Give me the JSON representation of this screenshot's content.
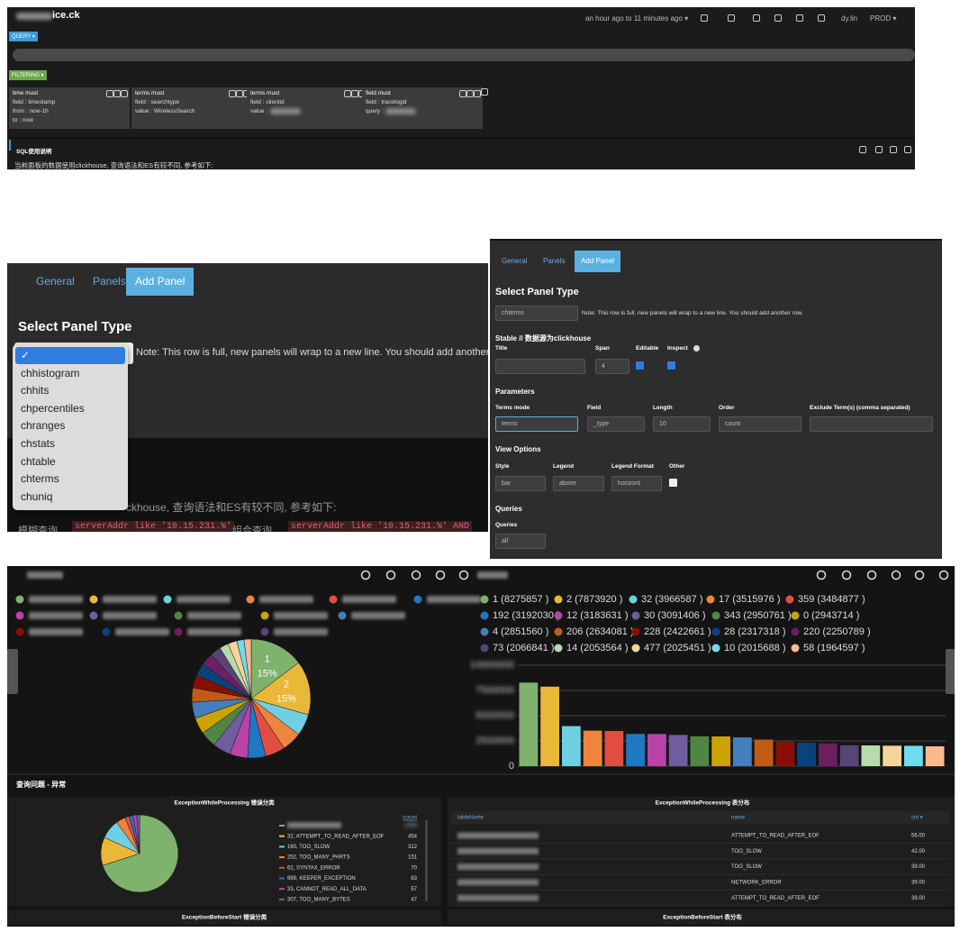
{
  "header": {
    "site": "ice.ck",
    "time_range": "an hour ago to 11 minutes ago ▾",
    "user": "dy.lin",
    "env": "PROD ▾",
    "query_button": "QUERY ▾",
    "filtering_button": "FILTERING ▾",
    "filters": [
      {
        "title": "time must",
        "lines": [
          "field : timestamp",
          "from : now-1h",
          "to : now"
        ]
      },
      {
        "title": "terms must",
        "lines": [
          "field : searchtype",
          "value : WirelessSearch"
        ]
      },
      {
        "title": "terms must",
        "lines": [
          "field : clientid",
          "value :"
        ]
      },
      {
        "title": "field must",
        "lines": [
          "field : tracelogid",
          "query :"
        ]
      }
    ],
    "sql_title": "SQL使用说明",
    "sql_note": "当前面板的数据使用clickhouse, 查询语法和ES有较不同, 参考如下:"
  },
  "add_panel_dialog": {
    "tabs": [
      "General",
      "Panels",
      "Add Panel"
    ],
    "heading": "Select Panel Type",
    "options": [
      "✓",
      "chhistogram",
      "chhits",
      "chpercentiles",
      "chranges",
      "chstats",
      "chtable",
      "chterms",
      "chuniq"
    ],
    "note": "Note: This row is full, new panels will wrap to a new line. You should add another row.",
    "background_text": "ckhouse, 查询语法和ES有较不同, 参考如下:",
    "example": [
      "模糊查询",
      "serverAddr like '10.15.231.%'",
      "组合查询",
      "serverAddr like '10.15.231.%' AND"
    ]
  },
  "panel_settings": {
    "tabs": [
      "General",
      "Panels",
      "Add Panel"
    ],
    "heading": "Select Panel Type",
    "panel_type": "chterms",
    "note": "Note: This row is full, new panels will wrap to a new line. You should add another row.",
    "subtitle": "Stable // 数据源为clickhouse",
    "general_labels": [
      "Title",
      "Span",
      "Editable",
      "Inspect"
    ],
    "span": "4",
    "parameters_heading": "Parameters",
    "parameter_labels": [
      "Terms mode",
      "Field",
      "Length",
      "Order",
      "Exclude Term(s) (comma separated)"
    ],
    "parameter_values": [
      "terms",
      "_type",
      "10",
      "count"
    ],
    "view_heading": "View Options",
    "view_labels": [
      "Style",
      "Legend",
      "Legend Format",
      "Other"
    ],
    "view_values": [
      "bar",
      "above",
      "horizont"
    ],
    "queries_heading": "Queries",
    "queries_label": "Queries",
    "queries_value": "all"
  },
  "pie_panel": {
    "type": "pie",
    "categories": [
      "1",
      "2",
      null,
      null,
      null,
      null,
      null,
      null,
      null,
      null,
      null,
      null,
      null,
      null,
      null,
      null,
      null,
      null,
      null,
      null
    ],
    "values": [
      15,
      15,
      6,
      5.5,
      5.5,
      5,
      5,
      5,
      4.5,
      4.5,
      4.5,
      4,
      3.5,
      3.5,
      3.5,
      3,
      2.5,
      2.5,
      2,
      2
    ],
    "value_labels": [
      "15%",
      "15%",
      null,
      null,
      null,
      null,
      null,
      null,
      null,
      null,
      null,
      null,
      null,
      null,
      null,
      null,
      null,
      null,
      null,
      null
    ]
  },
  "bar_panel": {
    "type": "bar",
    "legend": [
      "1 (8275857 )",
      "2 (7873920 )",
      "32 (3966587 )",
      "17 (3515976 )",
      "359 (3484877 )",
      "192 (3192030 )",
      "12 (3183631 )",
      "30 (3091406 )",
      "343 (2950761 )",
      "0 (2943714 )",
      "4 (2851560 )",
      "206 (2634081 )",
      "228 (2422661 )",
      "28 (2317318 )",
      "220 (2250789 )",
      "73 (2066841 )",
      "14 (2053564 )",
      "477 (2025451 )",
      "10 (2015688 )",
      "58 (1964597 )"
    ],
    "values": [
      8275857,
      7873920,
      3966587,
      3515976,
      3484877,
      3192030,
      3183631,
      3091406,
      2950761,
      2943714,
      2851560,
      2634081,
      2422661,
      2317318,
      2250789,
      2066841,
      2053564,
      2025451,
      2015688,
      1964597
    ],
    "colors": [
      "#7eb26d",
      "#eab839",
      "#6ed0e0",
      "#ef843c",
      "#e24d42",
      "#1f78c1",
      "#ba43a9",
      "#705da0",
      "#508642",
      "#cca300",
      "#447ebc",
      "#c15c17",
      "#890f02",
      "#0a437c",
      "#6d1f62",
      "#584477",
      "#b7dbab",
      "#f4d598",
      "#70dbed",
      "#f9ba8f"
    ],
    "ylim": [
      0,
      10000000
    ],
    "yticks": [
      0,
      2500000,
      5000000,
      7500000,
      10000000
    ],
    "grid": true
  },
  "section_title": "查询问题 - 异常",
  "error_pie": {
    "type": "pie",
    "title": "ExceptionWhileProcessing 错误分类",
    "legend_header": "count",
    "names": [
      null,
      "32, ATTEMPT_TO_READ_AFTER_EOF",
      "160, TOO_SLOW",
      "252, TOO_MANY_PARTS",
      "62, SYNTAX_ERROR",
      "999, KEEPER_EXCEPTION",
      "33, CANNOT_READ_ALL_DATA",
      "307, TOO_MANY_BYTES"
    ],
    "values": [
      2700,
      454,
      312,
      151,
      70,
      63,
      57,
      47
    ],
    "colors": [
      "#7eb26d",
      "#eab839",
      "#6ed0e0",
      "#ef843c",
      "#e24d42",
      "#1f78c1",
      "#ba43a9",
      "#705da0"
    ]
  },
  "error_table": {
    "title": "ExceptionWhileProcessing 表分布",
    "columns": [
      "tableName",
      "name",
      "cnt ▾"
    ],
    "rows": [
      [
        "ATTEMPT_TO_READ_AFTER_EOF",
        "56.00"
      ],
      [
        "TOO_SLOW",
        "42.00"
      ],
      [
        "TOO_SLOW",
        "39.00"
      ],
      [
        "NETWORK_ERROR",
        "39.00"
      ],
      [
        "ATTEMPT_TO_READ_AFTER_EOF",
        "39.00"
      ]
    ]
  },
  "footer_titles": [
    "ExceptionBeforeStart 错误分类",
    "ExceptionBeforeStart 表分布"
  ]
}
